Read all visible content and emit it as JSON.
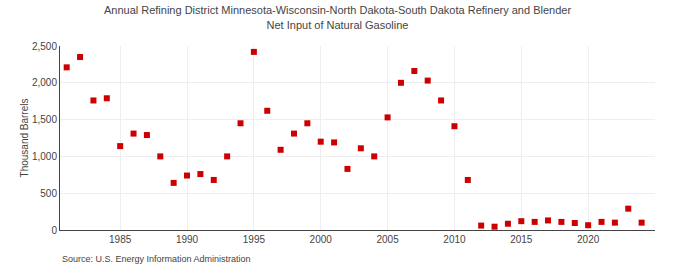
{
  "chart_data": {
    "type": "scatter",
    "title": "Annual Refining District Minnesota-Wisconsin-North Dakota-South Dakota Refinery and Blender\nNet Input of Natural Gasoline",
    "ylabel": "Thousand Barrels",
    "source": "Source: U.S. Energy Information Administration",
    "x": [
      1981,
      1982,
      1983,
      1984,
      1985,
      1986,
      1987,
      1988,
      1989,
      1990,
      1991,
      1992,
      1993,
      1994,
      1995,
      1996,
      1997,
      1998,
      1999,
      2000,
      2001,
      2002,
      2003,
      2004,
      2005,
      2006,
      2007,
      2008,
      2009,
      2010,
      2011,
      2012,
      2013,
      2014,
      2015,
      2016,
      2017,
      2018,
      2019,
      2020,
      2021,
      2022,
      2023,
      2024
    ],
    "values": [
      2210,
      2350,
      1760,
      1790,
      1140,
      1310,
      1290,
      1000,
      640,
      740,
      760,
      680,
      1000,
      1450,
      2420,
      1620,
      1090,
      1310,
      1450,
      1200,
      1190,
      830,
      1110,
      1000,
      1530,
      2000,
      2160,
      2030,
      1760,
      1410,
      680,
      60,
      45,
      85,
      120,
      110,
      130,
      110,
      95,
      65,
      110,
      100,
      290,
      100
    ],
    "color": "#cc0000",
    "marker": "square",
    "xlim": [
      1980.5,
      2025
    ],
    "xticks": [
      1985,
      1990,
      1995,
      2000,
      2005,
      2010,
      2015,
      2020
    ],
    "ylim": [
      0,
      2500
    ],
    "yticks": [
      0,
      500,
      {
        "value": 1000,
        "label": "1,000"
      },
      {
        "value": 1500,
        "label": "1,500"
      },
      {
        "value": 2000,
        "label": "2,000"
      },
      {
        "value": 2500,
        "label": "2,500"
      }
    ],
    "grid": true
  }
}
